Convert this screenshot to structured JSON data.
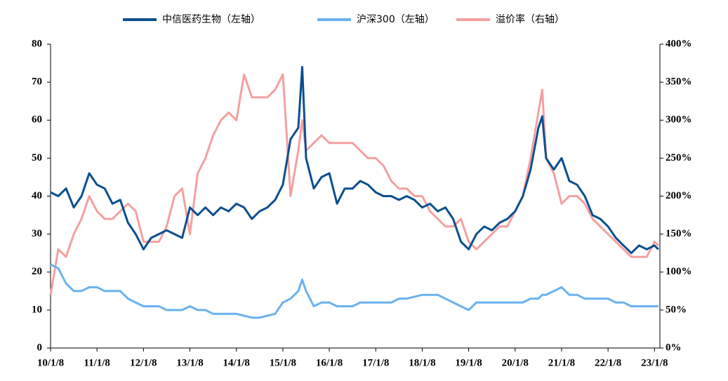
{
  "chart_data": {
    "type": "line",
    "x": [
      "10/1/8",
      "10/3/8",
      "10/5/8",
      "10/7/8",
      "10/9/8",
      "10/11/8",
      "11/1/8",
      "11/3/8",
      "11/5/8",
      "11/7/8",
      "11/9/8",
      "11/11/8",
      "12/1/8",
      "12/3/8",
      "12/5/8",
      "12/7/8",
      "12/9/8",
      "12/11/8",
      "13/1/8",
      "13/3/8",
      "13/5/8",
      "13/7/8",
      "13/9/8",
      "13/11/8",
      "14/1/8",
      "14/3/8",
      "14/5/8",
      "14/7/8",
      "14/9/8",
      "14/11/8",
      "15/1/8",
      "15/3/8",
      "15/5/8",
      "15/6/8",
      "15/7/8",
      "15/9/8",
      "15/11/8",
      "16/1/8",
      "16/3/8",
      "16/5/8",
      "16/7/8",
      "16/9/8",
      "16/11/8",
      "17/1/8",
      "17/3/8",
      "17/5/8",
      "17/7/8",
      "17/9/8",
      "17/11/8",
      "18/1/8",
      "18/3/8",
      "18/5/8",
      "18/7/8",
      "18/9/8",
      "18/11/8",
      "19/1/8",
      "19/3/8",
      "19/5/8",
      "19/7/8",
      "19/9/8",
      "19/11/8",
      "20/1/8",
      "20/3/8",
      "20/5/8",
      "20/7/8",
      "20/8/8",
      "20/9/8",
      "20/11/8",
      "21/1/8",
      "21/3/8",
      "21/5/8",
      "21/7/8",
      "21/9/8",
      "21/11/8",
      "22/1/8",
      "22/3/8",
      "22/5/8",
      "22/7/8",
      "22/9/8",
      "22/11/8",
      "23/1/8",
      "23/2/8"
    ],
    "series": [
      {
        "name": "溢价率（右轴）",
        "color": "#f4a0a0",
        "axis": "y2",
        "values": [
          70,
          130,
          120,
          150,
          170,
          200,
          180,
          170,
          170,
          180,
          190,
          180,
          140,
          140,
          140,
          160,
          200,
          210,
          150,
          230,
          250,
          280,
          300,
          310,
          300,
          360,
          330,
          330,
          330,
          340,
          360,
          200,
          260,
          300,
          260,
          270,
          280,
          270,
          270,
          270,
          270,
          260,
          250,
          250,
          240,
          220,
          210,
          210,
          200,
          200,
          180,
          170,
          160,
          160,
          170,
          140,
          130,
          140,
          150,
          160,
          160,
          180,
          200,
          250,
          310,
          340,
          250,
          230,
          190,
          200,
          200,
          190,
          170,
          160,
          150,
          140,
          130,
          120,
          120,
          120,
          140,
          135
        ]
      },
      {
        "name": "中信医药生物（左轴）",
        "color": "#0b4f8f",
        "values": [
          41,
          40,
          42,
          37,
          40,
          46,
          43,
          42,
          38,
          39,
          33,
          30,
          26,
          29,
          30,
          31,
          30,
          29,
          37,
          35,
          37,
          35,
          37,
          36,
          38,
          37,
          34,
          36,
          37,
          39,
          43,
          55,
          58,
          74,
          50,
          42,
          45,
          46,
          38,
          42,
          42,
          44,
          43,
          41,
          40,
          40,
          39,
          40,
          39,
          37,
          38,
          36,
          37,
          34,
          28,
          26,
          30,
          32,
          31,
          33,
          34,
          36,
          40,
          47,
          58,
          61,
          50,
          47,
          50,
          44,
          43,
          40,
          35,
          34,
          32,
          29,
          27,
          25,
          27,
          26,
          27,
          26
        ]
      },
      {
        "name": "沪深300（左轴）",
        "color": "#6ab2f0",
        "values": [
          22,
          21,
          17,
          15,
          15,
          16,
          16,
          15,
          15,
          15,
          13,
          12,
          11,
          11,
          11,
          10,
          10,
          10,
          11,
          10,
          10,
          9,
          9,
          9,
          9,
          8.5,
          8,
          8,
          8.5,
          9,
          12,
          13,
          15,
          18,
          15,
          11,
          12,
          12,
          11,
          11,
          11,
          12,
          12,
          12,
          12,
          12,
          13,
          13,
          13.5,
          14,
          14,
          14,
          13,
          12,
          11,
          10,
          12,
          12,
          12,
          12,
          12,
          12,
          12,
          13,
          13,
          14,
          14,
          15,
          16,
          14,
          14,
          13,
          13,
          13,
          13,
          12,
          12,
          11,
          11,
          11,
          11,
          11
        ]
      }
    ],
    "legend_order": [
      1,
      2,
      0
    ],
    "xlim": [
      "10/1/8",
      "23/2/20"
    ],
    "xticks": [
      "10/1/8",
      "11/1/8",
      "12/1/8",
      "13/1/8",
      "14/1/8",
      "15/1/8",
      "16/1/8",
      "17/1/8",
      "18/1/8",
      "19/1/8",
      "20/1/8",
      "21/1/8",
      "22/1/8",
      "23/1/8"
    ],
    "ylim": [
      0,
      80
    ],
    "yticks": [
      0,
      10,
      20,
      30,
      40,
      50,
      60,
      70,
      80
    ],
    "y2lim": [
      0,
      400
    ],
    "y2ticks": [
      {
        "value": 0,
        "label": "0%"
      },
      {
        "value": 50,
        "label": "50%"
      },
      {
        "value": 100,
        "label": "100%"
      },
      {
        "value": 150,
        "label": "150%"
      },
      {
        "value": 200,
        "label": "200%"
      },
      {
        "value": 250,
        "label": "250%"
      },
      {
        "value": 300,
        "label": "300%"
      },
      {
        "value": 350,
        "label": "350%"
      },
      {
        "value": 400,
        "label": "400%"
      }
    ]
  }
}
